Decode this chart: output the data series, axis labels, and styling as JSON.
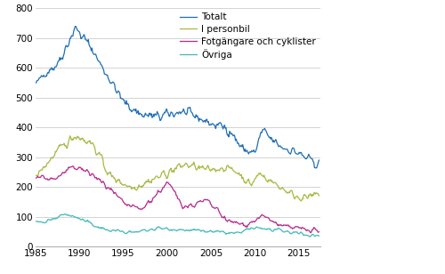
{
  "title": "",
  "xlabel": "",
  "ylabel": "",
  "xlim": [
    1985.0,
    2017.5
  ],
  "ylim": [
    0,
    800
  ],
  "yticks": [
    0,
    100,
    200,
    300,
    400,
    500,
    600,
    700,
    800
  ],
  "xticks": [
    1985,
    1990,
    1995,
    2000,
    2005,
    2010,
    2015
  ],
  "legend": [
    "Totalt",
    "I personbil",
    "Fotgängare och cyklister",
    "Övriga"
  ],
  "colors": [
    "#1f6eb5",
    "#a8b840",
    "#b8278c",
    "#40b8b8"
  ],
  "linewidth": 0.9,
  "background_color": "#ffffff",
  "grid_color": "#cccccc",
  "figsize": [
    5.0,
    3.08
  ],
  "dpi": 100
}
